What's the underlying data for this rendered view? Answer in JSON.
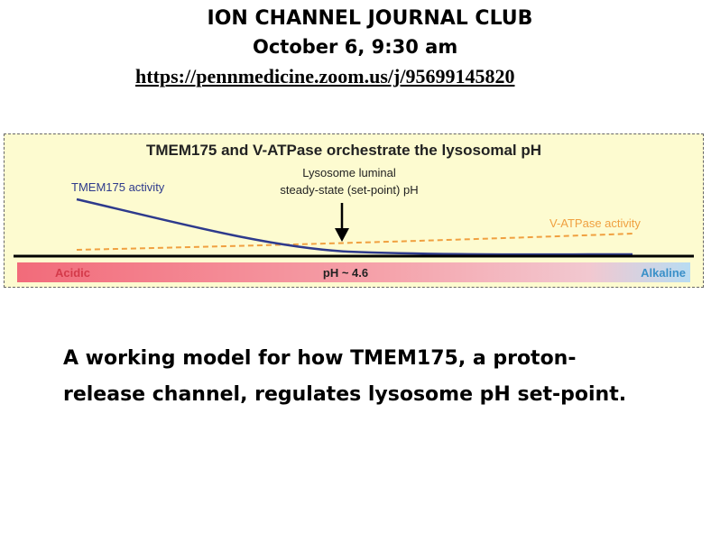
{
  "header": {
    "title": "ION CHANNEL JOURNAL CLUB",
    "date": "October 6, 9:30 am",
    "link": "https://pennmedicine.zoom.us/j/95699145820"
  },
  "diagram": {
    "title": "TMEM175 and V-ATPase orchestrate the lysosomal pH",
    "tmem_label": "TMEM175 activity",
    "set_point_label_line1": "Lysosome luminal",
    "set_point_label_line2": "steady-state (set-point) pH",
    "vatpase_label": "V-ATPase activity",
    "scale_left": "Acidic",
    "scale_center": "pH ~ 4.6",
    "scale_right": "Alkaline",
    "colors": {
      "tmem_curve": "#2e3a8c",
      "vatpase_curve": "#f0a040",
      "acidic": "#f26b7a",
      "alkaline": "#b8dcf2",
      "background": "#fdfbd0"
    }
  },
  "caption": {
    "line1": "A working model for how TMEM175, a proton-",
    "line2": "release channel, regulates lysosome pH set-point."
  }
}
